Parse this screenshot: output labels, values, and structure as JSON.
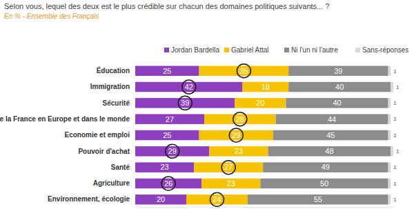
{
  "chart_data": {
    "type": "bar",
    "orientation": "horizontal",
    "stacked": true,
    "data_labels": true,
    "tick_labels": "y",
    "grid": false,
    "legend": "top",
    "title": "Selon vous, lequel des deux est le plus crédible sur chacun des domaines politiques suivants... ?",
    "subtitle": "En % - Ensemble des Français",
    "categories": [
      "Éducation",
      "Immigration",
      "Sécurité",
      "Place de la France en Europe et dans le monde",
      "Economie et emploi",
      "Pouvoir d'achat",
      "Santé",
      "Agriculture",
      "Environnement, écologie"
    ],
    "series": [
      {
        "name": "Jordan Bardella",
        "color": "#8e3fbf",
        "values": [
          25,
          42,
          39,
          27,
          25,
          29,
          23,
          26,
          20
        ]
      },
      {
        "name": "Gabriel Attal",
        "color": "#f6c300",
        "values": [
          35,
          18,
          20,
          28,
          29,
          23,
          27,
          23,
          24
        ]
      },
      {
        "name": "Ni l'un ni l'autre",
        "color": "#8c8c8c",
        "values": [
          39,
          40,
          40,
          44,
          45,
          48,
          49,
          50,
          55
        ]
      },
      {
        "name": "Sans-réponses",
        "color": "#d9d9d9",
        "values": [
          1,
          1,
          1,
          1,
          1,
          1,
          1,
          1,
          1
        ]
      }
    ],
    "xlim": [
      0,
      101
    ]
  }
}
